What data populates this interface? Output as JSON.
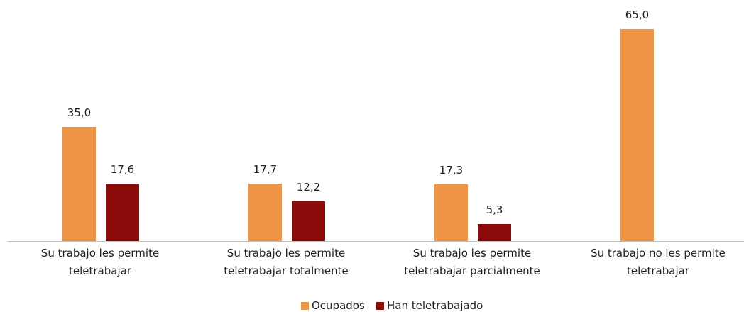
{
  "chart_data": {
    "type": "bar",
    "categories": [
      "Su trabajo les permite\nteletrabajar",
      "Su trabajo les permite\nteletrabajar totalmente",
      "Su trabajo les permite\nteletrabajar parcialmente",
      "Su trabajo no les permite\nteletrabajar"
    ],
    "series": [
      {
        "name": "Ocupados",
        "color": "#ed9447",
        "values": [
          35.0,
          17.7,
          17.3,
          65.0
        ],
        "value_labels": [
          "35,0",
          "17,7",
          "17,3",
          "65,0"
        ]
      },
      {
        "name": "Han teletrabajado",
        "color": "#8b0a0a",
        "values": [
          17.6,
          12.2,
          5.3,
          null
        ],
        "value_labels": [
          "17,6",
          "12,2",
          "5,3",
          null
        ]
      }
    ],
    "legend": "bottom"
  }
}
